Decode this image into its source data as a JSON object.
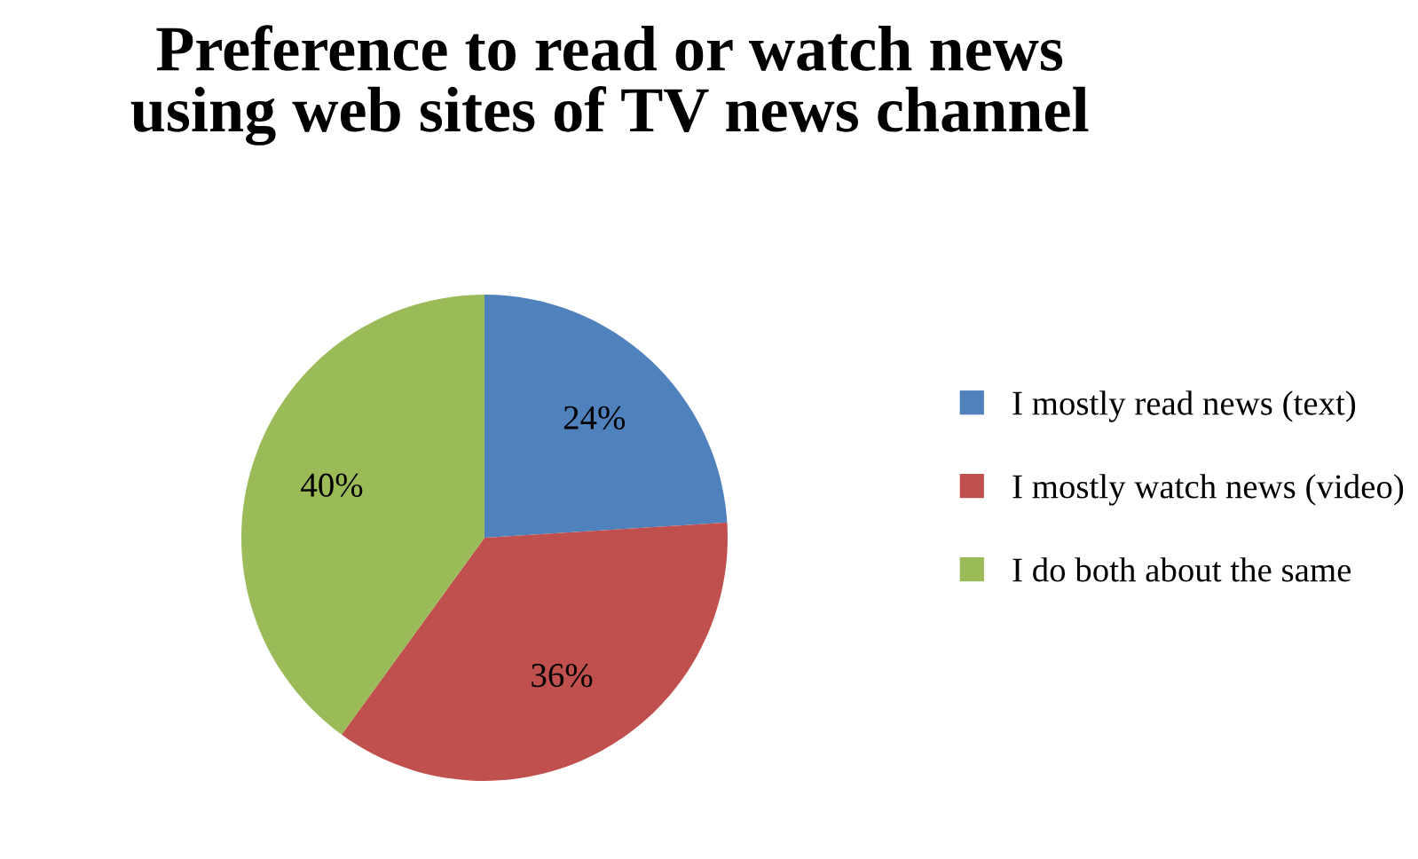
{
  "chart_data": {
    "type": "pie",
    "title": "Preference to read or watch news\nusing web sites of TV news channel",
    "categories": [
      "I mostly read news (text)",
      "I mostly watch news (video)",
      "I do both about the same"
    ],
    "values": [
      24,
      36,
      40
    ],
    "value_labels": [
      "24%",
      "36%",
      "40%"
    ],
    "colors": [
      "#4f81bd",
      "#c0504d",
      "#9bbb59"
    ],
    "legend": "right"
  }
}
